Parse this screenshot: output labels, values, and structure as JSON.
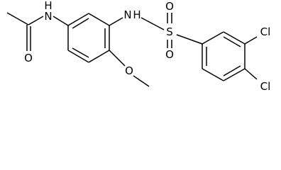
{
  "atoms": [
    {
      "label": "H"
    },
    {
      "label": "N"
    },
    {
      "label": "O"
    },
    {
      "label": "N"
    },
    {
      "label": "H"
    },
    {
      "label": "O"
    },
    {
      "label": "S"
    },
    {
      "label": "O"
    },
    {
      "label": "O"
    },
    {
      "label": "Cl"
    },
    {
      "label": "Cl"
    }
  ]
}
